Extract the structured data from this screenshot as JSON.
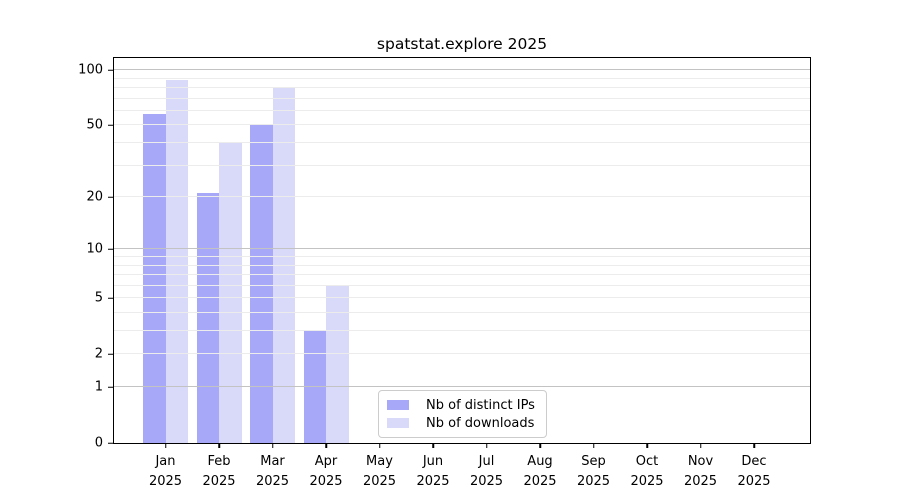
{
  "chart_data": {
    "type": "bar",
    "title": "spatstat.explore 2025",
    "categories": [
      "Jan",
      "Feb",
      "Mar",
      "Apr",
      "May",
      "Jun",
      "Jul",
      "Aug",
      "Sep",
      "Oct",
      "Nov",
      "Dec"
    ],
    "year_label": "2025",
    "series": [
      {
        "name": "Nb of distinct IPs",
        "color": "#a8a8f8",
        "values": [
          58,
          21,
          50,
          3,
          0,
          0,
          0,
          0,
          0,
          0,
          0,
          0
        ]
      },
      {
        "name": "Nb of downloads",
        "color": "#d9d9fa",
        "values": [
          88,
          40,
          80,
          6,
          0,
          0,
          0,
          0,
          0,
          0,
          0,
          0
        ]
      }
    ],
    "yscale": "log1p",
    "ylim": [
      0,
      113
    ],
    "yticks": [
      0,
      1,
      2,
      5,
      10,
      20,
      50,
      100
    ],
    "major_gridlines": [
      1,
      10,
      100
    ],
    "minor_gridlines": [
      2,
      3,
      4,
      5,
      6,
      7,
      8,
      9,
      20,
      30,
      40,
      50,
      60,
      70,
      80,
      90
    ],
    "grid_on": true,
    "legend_position": "bottom-center",
    "colors": {
      "major_grid": "#c3c3c3",
      "minor_grid": "#ececec",
      "axis": "#000000",
      "background": "#ffffff"
    }
  }
}
